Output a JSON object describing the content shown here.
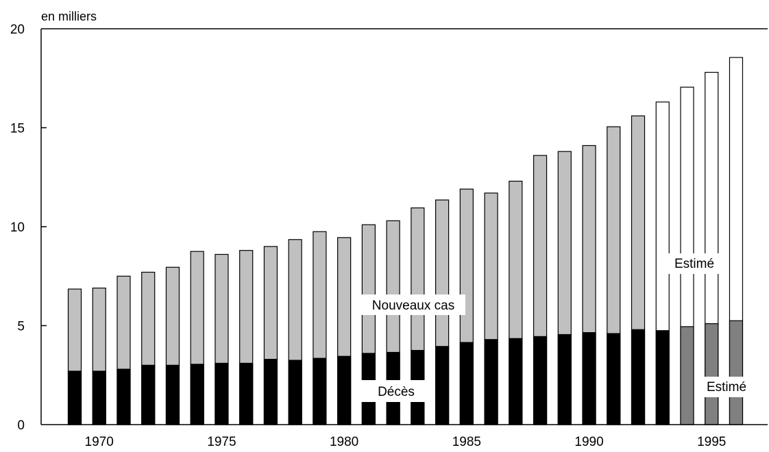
{
  "chart_data": {
    "type": "bar",
    "unit_label": "en milliers",
    "x": [
      1969,
      1970,
      1971,
      1972,
      1973,
      1974,
      1975,
      1976,
      1977,
      1978,
      1979,
      1980,
      1981,
      1982,
      1983,
      1984,
      1985,
      1986,
      1987,
      1988,
      1989,
      1990,
      1991,
      1992,
      1993,
      1994,
      1995,
      1996
    ],
    "x_tick_labels": [
      "1970",
      "1975",
      "1980",
      "1985",
      "1990",
      "1995"
    ],
    "x_tick_values": [
      1970,
      1975,
      1980,
      1985,
      1990,
      1995
    ],
    "y_tick_labels": [
      "0",
      "5",
      "10",
      "15",
      "20"
    ],
    "y_tick_values": [
      0,
      5,
      10,
      15,
      20
    ],
    "ylim": [
      0,
      20
    ],
    "series": [
      {
        "name": "Nouveaux cas",
        "values": [
          6.85,
          6.9,
          7.5,
          7.7,
          7.95,
          8.75,
          8.6,
          8.8,
          9.0,
          9.35,
          9.75,
          9.45,
          10.1,
          10.3,
          10.95,
          11.35,
          11.9,
          11.7,
          12.3,
          13.6,
          13.8,
          14.1,
          15.05,
          15.6,
          16.3,
          17.05,
          17.8,
          18.55
        ],
        "color": "#c0c0c0",
        "estimated_color": "#ffffff",
        "estimated_from": 1993
      },
      {
        "name": "Décès",
        "values": [
          2.7,
          2.7,
          2.8,
          3.0,
          3.0,
          3.05,
          3.1,
          3.1,
          3.3,
          3.25,
          3.35,
          3.45,
          3.6,
          3.65,
          3.75,
          3.95,
          4.15,
          4.3,
          4.35,
          4.45,
          4.55,
          4.65,
          4.6,
          4.8,
          4.75,
          4.95,
          5.1,
          5.25
        ],
        "color": "#000000",
        "estimated_color": "#808080",
        "estimated_from": 1994
      }
    ],
    "annotations": [
      "Nouveaux cas",
      "Décès",
      "Estimé",
      "Estimé"
    ],
    "grid": false,
    "legend": "none"
  }
}
